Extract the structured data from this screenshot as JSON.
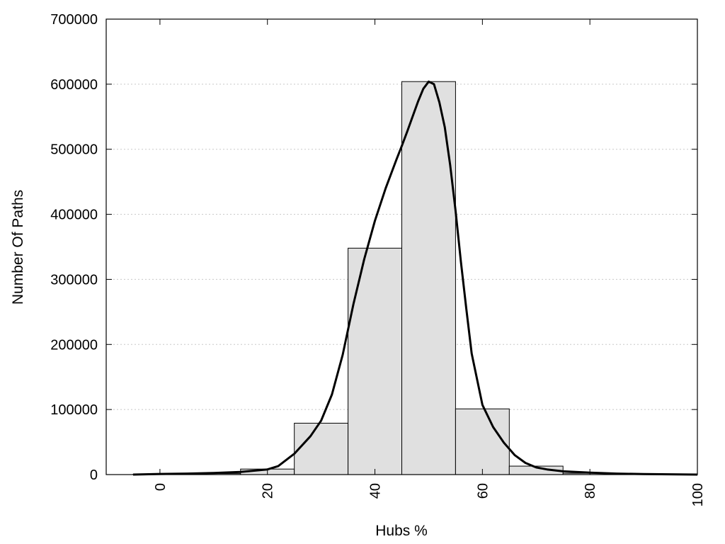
{
  "chart_data": {
    "type": "bar",
    "title": "",
    "xlabel": "Hubs %",
    "ylabel": "Number Of Paths",
    "xlim": [
      -10,
      100
    ],
    "ylim": [
      0,
      700000
    ],
    "x_ticks": [
      0,
      20,
      40,
      60,
      80,
      100
    ],
    "x_tick_labels": [
      "0",
      "20",
      "40",
      "60",
      "80",
      "100"
    ],
    "y_ticks": [
      0,
      100000,
      200000,
      300000,
      400000,
      500000,
      600000,
      700000
    ],
    "y_tick_labels": [
      "0",
      "100000",
      "200000",
      "300000",
      "400000",
      "500000",
      "600000",
      "700000"
    ],
    "grid": "horizontal dotted",
    "bar_color": "#e0e0e0",
    "bin_width": 10,
    "bins": [
      {
        "center": 0,
        "value": 500
      },
      {
        "center": 10,
        "value": 1500
      },
      {
        "center": 20,
        "value": 8500
      },
      {
        "center": 30,
        "value": 79000
      },
      {
        "center": 40,
        "value": 348000
      },
      {
        "center": 50,
        "value": 604000
      },
      {
        "center": 60,
        "value": 101000
      },
      {
        "center": 70,
        "value": 13000
      },
      {
        "center": 80,
        "value": 2000
      },
      {
        "center": 90,
        "value": 500
      }
    ],
    "fit_curve": {
      "x": [
        -5,
        0,
        5,
        10,
        15,
        20,
        22,
        25,
        28,
        30,
        32,
        34,
        36,
        38,
        40,
        42,
        44,
        45,
        46,
        47,
        48,
        49,
        50,
        51,
        52,
        53,
        54,
        55,
        56,
        57,
        58,
        60,
        62,
        64,
        66,
        68,
        70,
        72,
        75,
        80,
        85,
        90,
        95,
        100
      ],
      "y": [
        0,
        1000,
        1500,
        2500,
        4000,
        8000,
        13000,
        32000,
        59000,
        83000,
        123000,
        184000,
        262000,
        331000,
        390000,
        440000,
        484000,
        505000,
        527000,
        550000,
        573000,
        593000,
        604000,
        600000,
        572000,
        534000,
        476000,
        406000,
        327000,
        255000,
        186000,
        107000,
        73000,
        49000,
        30000,
        18000,
        11000,
        8000,
        5000,
        3000,
        1500,
        800,
        400,
        0
      ]
    }
  }
}
